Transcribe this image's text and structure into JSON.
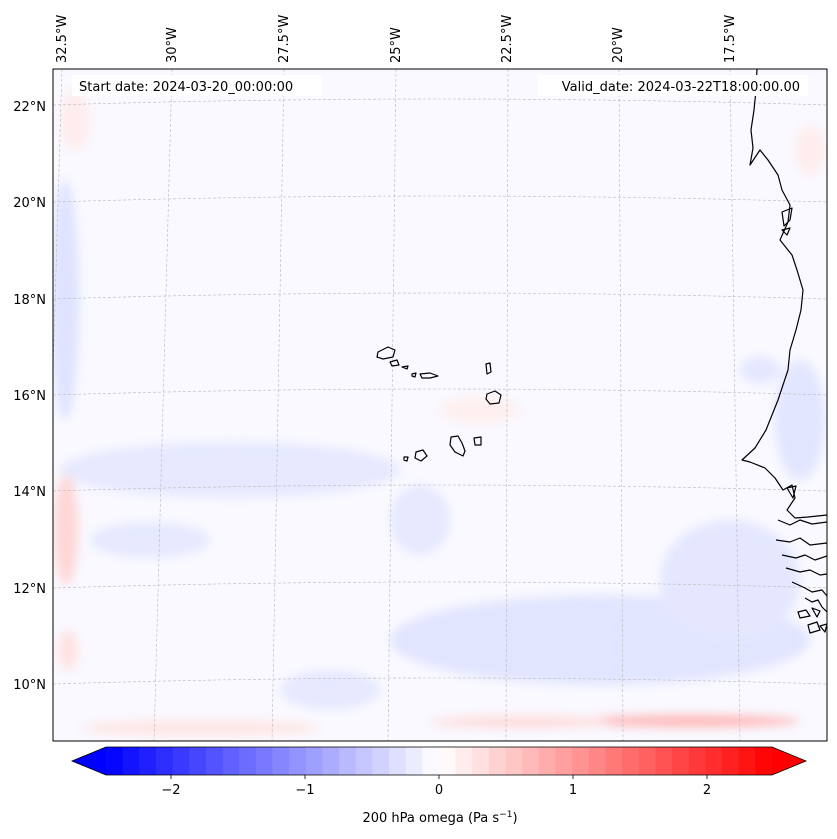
{
  "map": {
    "start_label": "Start date: 2024-03-20_00:00:00",
    "valid_label": "Valid_date: 2024-03-22T18:00:00.00",
    "lon_labels": [
      "32.5°W",
      "30°W",
      "27.5°W",
      "25°W",
      "22.5°W",
      "20°W",
      "17.5°W"
    ],
    "lat_labels": [
      "22°N",
      "20°N",
      "18°N",
      "16°N",
      "14°N",
      "12°N",
      "10°N"
    ]
  },
  "colorbar": {
    "ticks": [
      "−2",
      "−1",
      "0",
      "1",
      "2"
    ],
    "label_main": "200 hPa omega (Pa s",
    "label_sup": "−1",
    "label_end": ")",
    "vmin": -2.6,
    "vmax": 2.6
  },
  "colors": {
    "negative": "#0000ff",
    "neutral": "#ffffff",
    "positive": "#ff0000",
    "coast": "#000000",
    "grid": "#b0b0b0"
  }
}
